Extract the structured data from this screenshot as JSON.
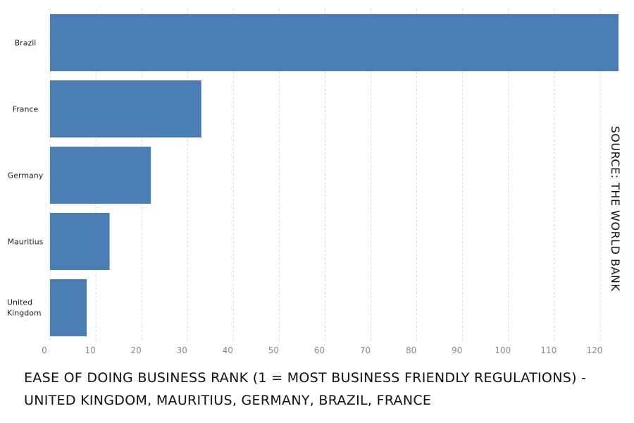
{
  "chart_data": {
    "type": "bar",
    "orientation": "horizontal",
    "title": "EASE OF DOING BUSINESS RANK (1 = MOST BUSINESS FRIENDLY REGULATIONS) - UNITED KINGDOM, MAURITIUS, GERMANY, BRAZIL, FRANCE",
    "source": "SOURCE: THE WORLD BANK",
    "categories": [
      "Brazil",
      "France",
      "Germany",
      "Mauritius",
      "United Kingdom"
    ],
    "values": [
      124,
      33,
      22,
      13,
      8
    ],
    "xlim": [
      0,
      124
    ],
    "xticks": [
      "0",
      "10",
      "20",
      "30",
      "40",
      "50",
      "60",
      "70",
      "80",
      "90",
      "100",
      "110",
      "120"
    ],
    "grid": true,
    "bar_color": "#4a7db3"
  }
}
